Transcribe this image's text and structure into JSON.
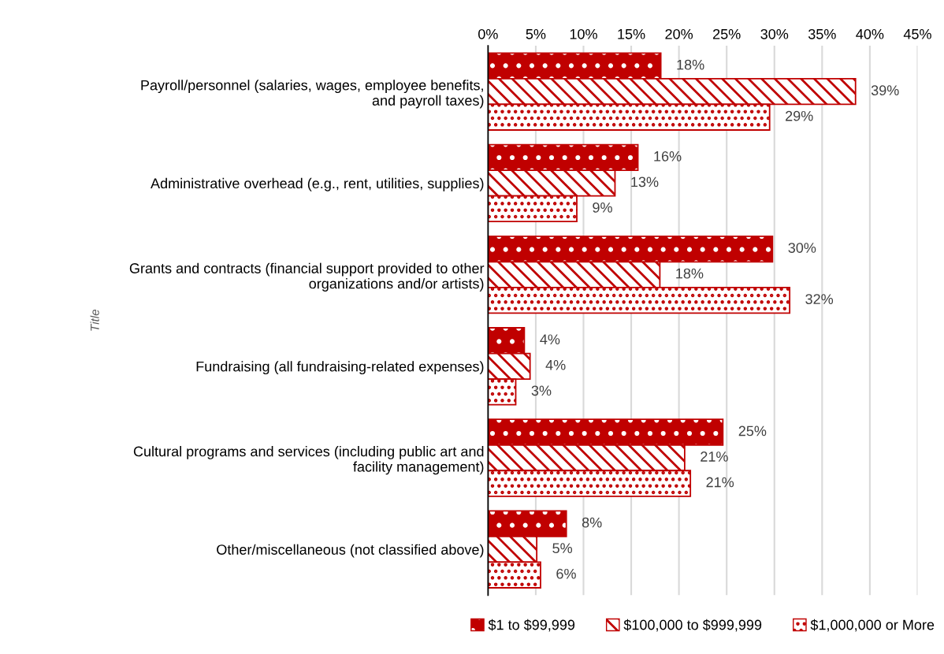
{
  "chart_data": {
    "type": "bar",
    "orientation": "horizontal",
    "ylabel": "Title",
    "categories": [
      "Payroll/personnel (salaries, wages, employee benefits,\nand payroll taxes)",
      "Administrative overhead (e.g., rent, utilities, supplies)",
      "Grants and contracts (financial support provided to other\norganizations and/or artists)",
      "Fundraising (all fundraising-related expenses)",
      "Cultural programs and services (including public art and\nfacility management)",
      "Other/miscellaneous (not classified above)"
    ],
    "series": [
      {
        "name": "$1 to $99,999",
        "color": "#c00000",
        "values": [
          18.1,
          15.7,
          29.8,
          3.8,
          24.6,
          8.2
        ],
        "value_labels": [
          "18%",
          "16%",
          "30%",
          "4%",
          "25%",
          "8%"
        ]
      },
      {
        "name": "$100,000 to $999,999",
        "color": "#c00000",
        "values": [
          38.5,
          13.3,
          18.0,
          4.4,
          20.6,
          5.1
        ],
        "value_labels": [
          "39%",
          "13%",
          "18%",
          "4%",
          "21%",
          "5%"
        ]
      },
      {
        "name": "$1,000,000 or More",
        "color": "#c00000",
        "values": [
          29.5,
          9.3,
          31.6,
          2.9,
          21.2,
          5.5
        ],
        "value_labels": [
          "29%",
          "9%",
          "32%",
          "3%",
          "21%",
          "6%"
        ]
      }
    ],
    "xlim": [
      0,
      45
    ],
    "xticks": [
      {
        "value": 0,
        "label": "0%"
      },
      {
        "value": 5,
        "label": "5%"
      },
      {
        "value": 10,
        "label": "10%"
      },
      {
        "value": 15,
        "label": "15%"
      },
      {
        "value": 20,
        "label": "20%"
      },
      {
        "value": 25,
        "label": "25%"
      },
      {
        "value": 30,
        "label": "30%"
      },
      {
        "value": 35,
        "label": "35%"
      },
      {
        "value": 40,
        "label": "40%"
      },
      {
        "value": 45,
        "label": "45%"
      }
    ],
    "grid": "x",
    "legend": "bottom"
  }
}
